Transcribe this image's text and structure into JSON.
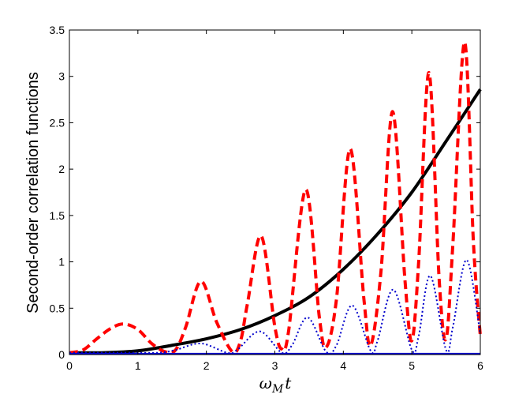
{
  "chart_data": {
    "type": "line",
    "title": "",
    "xlabel": "ωMt",
    "xlabel_main": "ω",
    "xlabel_sub": "M",
    "xlabel_tail": "t",
    "ylabel": "Second-order correlation functions",
    "xlim": [
      0,
      6
    ],
    "ylim": [
      0,
      3.5
    ],
    "grid": false,
    "legend": "none",
    "xticks": [
      0,
      1,
      2,
      3,
      4,
      5,
      6
    ],
    "yticks": [
      0,
      0.5,
      1,
      1.5,
      2,
      2.5,
      3,
      3.5
    ],
    "xtick_labels": [
      "0",
      "1",
      "2",
      "3",
      "4",
      "5",
      "6"
    ],
    "ytick_labels": [
      "0",
      "0.5",
      "1",
      "1.5",
      "2",
      "2.5",
      "3",
      "3.5"
    ],
    "series": [
      {
        "style": "solid",
        "color": "#000000",
        "x": [
          0,
          0.5,
          1.0,
          1.5,
          2.0,
          2.5,
          3.0,
          3.5,
          4.0,
          4.5,
          5.0,
          5.5,
          6.0
        ],
        "y": [
          0.02,
          0.02,
          0.04,
          0.1,
          0.17,
          0.27,
          0.42,
          0.62,
          0.92,
          1.3,
          1.75,
          2.3,
          2.86
        ]
      },
      {
        "style": "dashed",
        "color": "#ff0000",
        "x": [
          0,
          0.2,
          0.4,
          0.6,
          0.79,
          1.0,
          1.2,
          1.4,
          1.55,
          1.7,
          1.92,
          2.15,
          2.38,
          2.5,
          2.6,
          2.8,
          3.0,
          3.1,
          3.2,
          3.45,
          3.65,
          3.75,
          3.9,
          4.1,
          4.3,
          4.4,
          4.55,
          4.72,
          4.9,
          5.0,
          5.1,
          5.25,
          5.4,
          5.5,
          5.6,
          5.77,
          5.9,
          6.0
        ],
        "y": [
          0.02,
          0.05,
          0.17,
          0.28,
          0.33,
          0.27,
          0.12,
          0.03,
          0.05,
          0.3,
          0.79,
          0.35,
          0.03,
          0.15,
          0.55,
          1.28,
          0.3,
          0.06,
          0.25,
          1.78,
          0.4,
          0.08,
          0.6,
          2.22,
          0.6,
          0.1,
          0.9,
          2.62,
          0.8,
          0.15,
          1.0,
          3.04,
          0.8,
          0.17,
          1.2,
          3.37,
          1.2,
          0.2
        ]
      },
      {
        "style": "dotted",
        "color": "#0000cc",
        "x": [
          0,
          0.8,
          1.3,
          1.55,
          1.92,
          2.3,
          2.45,
          2.78,
          3.1,
          3.25,
          3.48,
          3.75,
          3.9,
          4.13,
          4.4,
          4.5,
          4.73,
          5.0,
          5.1,
          5.27,
          5.5,
          5.6,
          5.8,
          6.0
        ],
        "y": [
          0.02,
          0.02,
          0.02,
          0.05,
          0.12,
          0.02,
          0.05,
          0.25,
          0.02,
          0.1,
          0.4,
          0.03,
          0.1,
          0.53,
          0.04,
          0.15,
          0.7,
          0.05,
          0.2,
          0.85,
          0.05,
          0.3,
          1.02,
          0.22
        ]
      },
      {
        "style": "solid-thin",
        "color": "#0000cc",
        "x": [
          0,
          6
        ],
        "y": [
          0.01,
          0.01
        ]
      }
    ]
  }
}
